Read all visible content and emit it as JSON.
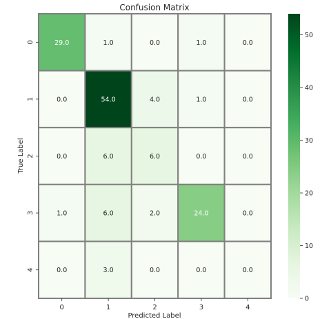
{
  "chart_data": {
    "type": "heatmap",
    "title": "Confusion Matrix",
    "xlabel": "Predicted Label",
    "ylabel": "True Label",
    "x_categories": [
      "0",
      "1",
      "2",
      "3",
      "4"
    ],
    "y_categories": [
      "0",
      "1",
      "2",
      "3",
      "4"
    ],
    "values": [
      [
        29.0,
        1.0,
        0.0,
        1.0,
        0.0
      ],
      [
        0.0,
        54.0,
        4.0,
        1.0,
        0.0
      ],
      [
        0.0,
        6.0,
        6.0,
        0.0,
        0.0
      ],
      [
        1.0,
        6.0,
        2.0,
        24.0,
        0.0
      ],
      [
        0.0,
        3.0,
        0.0,
        0.0,
        0.0
      ]
    ],
    "cell_labels": [
      [
        "29.0",
        "1.0",
        "0.0",
        "1.0",
        "0.0"
      ],
      [
        "0.0",
        "54.0",
        "4.0",
        "1.0",
        "0.0"
      ],
      [
        "0.0",
        "6.0",
        "6.0",
        "0.0",
        "0.0"
      ],
      [
        "1.0",
        "6.0",
        "2.0",
        "24.0",
        "0.0"
      ],
      [
        "0.0",
        "3.0",
        "0.0",
        "0.0",
        "0.0"
      ]
    ],
    "colorscale": "Greens",
    "color_range": [
      0,
      54
    ],
    "colorbar_ticks": [
      "0",
      "10",
      "20",
      "30",
      "40",
      "50"
    ],
    "colorbar_tick_values": [
      0,
      10,
      20,
      30,
      40,
      50
    ],
    "colors": {
      "low": "#f7fcf5",
      "high": "#00441b",
      "cell_border": "#808080",
      "text_dark": "#262626",
      "text_light": "#ffffff"
    },
    "grid": false
  }
}
